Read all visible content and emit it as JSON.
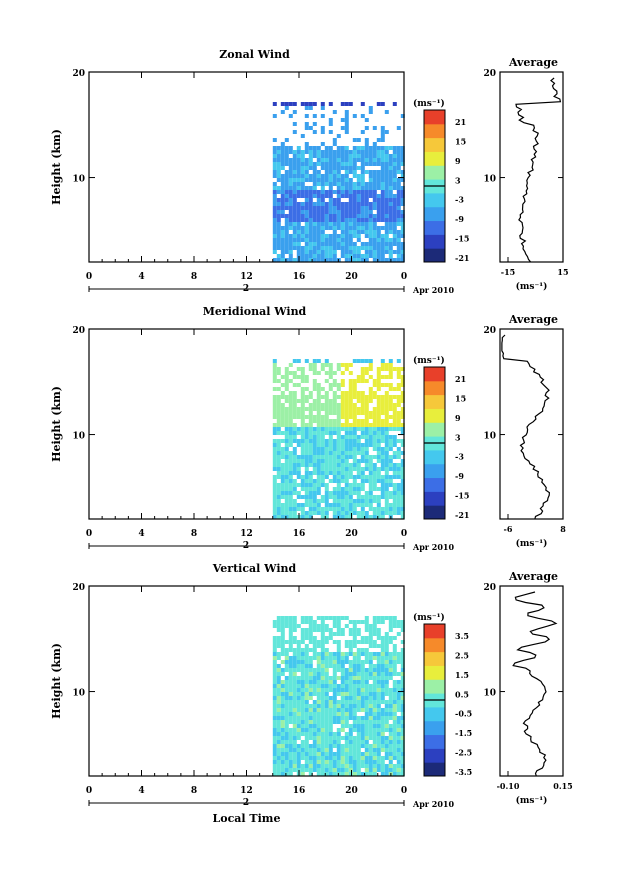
{
  "chart_data": [
    {
      "type": "heatmap",
      "title": "Zonal Wind",
      "ylabel": "Height (km)",
      "xlabel": "",
      "x_ticks": [
        "0",
        "4",
        "8",
        "12",
        "16",
        "20",
        "0"
      ],
      "y_ticks": [
        "10",
        "20"
      ],
      "xlim": [
        0,
        24
      ],
      "ylim": [
        2,
        20
      ],
      "date_marker": "2",
      "date_label": "Apr 2010",
      "colorbar": {
        "unit": "(ms⁻¹)",
        "ticks": [
          "21",
          "15",
          "9",
          "3",
          "-3",
          "-9",
          "-15",
          "-21"
        ]
      },
      "average": {
        "title": "Average",
        "xlim": [
          -15,
          15
        ],
        "x_ticks": [
          "-15",
          "15"
        ],
        "unit": "(ms⁻¹)",
        "y_ticks": [
          "10",
          "20"
        ]
      }
    },
    {
      "type": "heatmap",
      "title": "Meridional Wind",
      "ylabel": "Height (km)",
      "xlabel": "",
      "x_ticks": [
        "0",
        "4",
        "8",
        "12",
        "16",
        "20",
        "0"
      ],
      "y_ticks": [
        "10",
        "20"
      ],
      "xlim": [
        0,
        24
      ],
      "ylim": [
        2,
        20
      ],
      "date_marker": "2",
      "date_label": "Apr 2010",
      "colorbar": {
        "unit": "(ms⁻¹)",
        "ticks": [
          "21",
          "15",
          "9",
          "3",
          "-3",
          "-9",
          "-15",
          "-21"
        ]
      },
      "average": {
        "title": "Average",
        "xlim": [
          -6,
          8
        ],
        "x_ticks": [
          "-6",
          "8"
        ],
        "unit": "(ms⁻¹)",
        "y_ticks": [
          "10",
          "20"
        ]
      }
    },
    {
      "type": "heatmap",
      "title": "Vertical Wind",
      "ylabel": "Height (km)",
      "xlabel": "Local Time",
      "x_ticks": [
        "0",
        "4",
        "8",
        "12",
        "16",
        "20",
        "0"
      ],
      "y_ticks": [
        "10",
        "20"
      ],
      "xlim": [
        0,
        24
      ],
      "ylim": [
        2,
        20
      ],
      "date_marker": "2",
      "date_label": "Apr 2010",
      "colorbar": {
        "unit": "(ms⁻¹)",
        "ticks": [
          "3.5",
          "2.5",
          "1.5",
          "0.5",
          "-0.5",
          "-1.5",
          "-2.5",
          "-3.5"
        ]
      },
      "average": {
        "title": "Average",
        "xlim": [
          -0.1,
          0.15
        ],
        "x_ticks": [
          "-0.10",
          "0.15"
        ],
        "unit": "(ms⁻¹)",
        "y_ticks": [
          "10",
          "20"
        ]
      }
    }
  ],
  "colors": {
    "scale": [
      "#1c2a78",
      "#2c40c0",
      "#3c6ee6",
      "#3aa0ee",
      "#44c8ee",
      "#62e6da",
      "#9cf0a6",
      "#e8ee3c",
      "#f6c83a",
      "#f68a2a",
      "#e8402a"
    ]
  }
}
